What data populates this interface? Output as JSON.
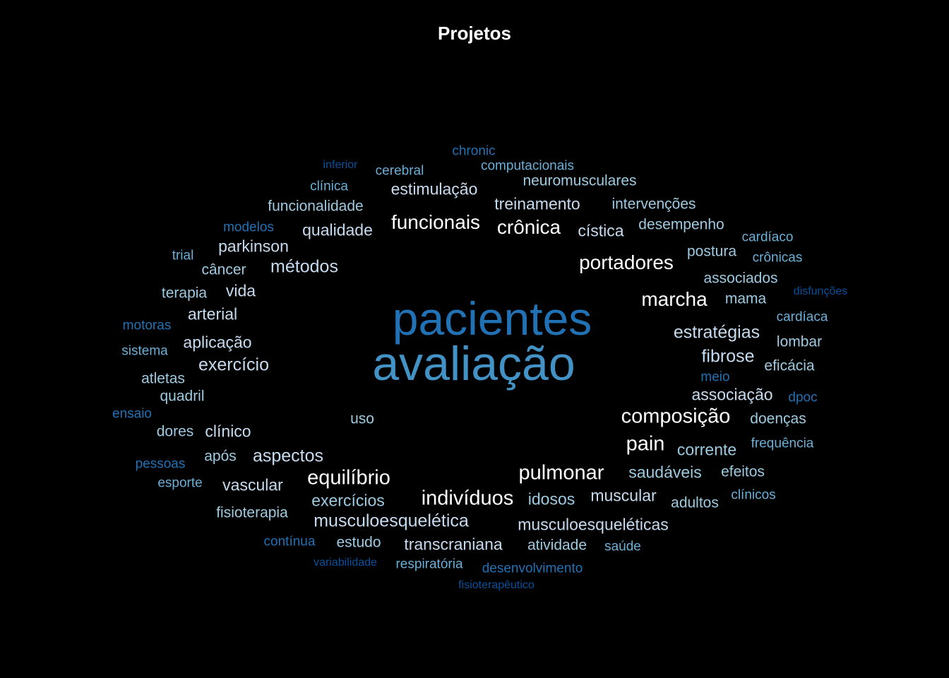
{
  "title": "Projetos",
  "palette": {
    "white": "#ffffff",
    "pale": "#e0ecf8",
    "light": "#c6dbef",
    "sky": "#9ecae1",
    "mid": "#6baed6",
    "blue": "#4292c6",
    "royal": "#2171b5",
    "dark": "#08519c",
    "navy": "#08306b"
  },
  "words": [
    {
      "text": "pacientes",
      "tone": "royal"
    },
    {
      "text": "avaliação",
      "tone": "blue"
    },
    {
      "text": "funcionais",
      "tone": "white"
    },
    {
      "text": "crônica",
      "tone": "white"
    },
    {
      "text": "portadores",
      "tone": "white"
    },
    {
      "text": "marcha",
      "tone": "white"
    },
    {
      "text": "composição",
      "tone": "white"
    },
    {
      "text": "pain",
      "tone": "white"
    },
    {
      "text": "pulmonar",
      "tone": "white"
    },
    {
      "text": "indivíduos",
      "tone": "white"
    },
    {
      "text": "equilíbrio",
      "tone": "white"
    },
    {
      "text": "estimulação",
      "tone": "light"
    },
    {
      "text": "treinamento",
      "tone": "light"
    },
    {
      "text": "qualidade",
      "tone": "light"
    },
    {
      "text": "cística",
      "tone": "light"
    },
    {
      "text": "parkinson",
      "tone": "light"
    },
    {
      "text": "métodos",
      "tone": "light"
    },
    {
      "text": "vida",
      "tone": "light"
    },
    {
      "text": "arterial",
      "tone": "light"
    },
    {
      "text": "aplicação",
      "tone": "light"
    },
    {
      "text": "exercício",
      "tone": "light"
    },
    {
      "text": "estratégias",
      "tone": "light"
    },
    {
      "text": "fibrose",
      "tone": "light"
    },
    {
      "text": "associação",
      "tone": "light"
    },
    {
      "text": "clínico",
      "tone": "light"
    },
    {
      "text": "aspectos",
      "tone": "light"
    },
    {
      "text": "musculoesquelética",
      "tone": "light"
    },
    {
      "text": "musculoesqueléticas",
      "tone": "light"
    },
    {
      "text": "transcraniana",
      "tone": "light"
    },
    {
      "text": "muscular",
      "tone": "light"
    },
    {
      "text": "vascular",
      "tone": "light"
    },
    {
      "text": "saudáveis",
      "tone": "sky"
    },
    {
      "text": "corrente",
      "tone": "sky"
    },
    {
      "text": "idosos",
      "tone": "sky"
    },
    {
      "text": "exercícios",
      "tone": "sky"
    },
    {
      "text": "estudo",
      "tone": "sky"
    },
    {
      "text": "atividade",
      "tone": "sky"
    },
    {
      "text": "adultos",
      "tone": "sky"
    },
    {
      "text": "postura",
      "tone": "sky"
    },
    {
      "text": "associados",
      "tone": "sky"
    },
    {
      "text": "mama",
      "tone": "sky"
    },
    {
      "text": "lombar",
      "tone": "sky"
    },
    {
      "text": "eficácia",
      "tone": "sky"
    },
    {
      "text": "doenças",
      "tone": "sky"
    },
    {
      "text": "efeitos",
      "tone": "sky"
    },
    {
      "text": "desempenho",
      "tone": "sky"
    },
    {
      "text": "intervenções",
      "tone": "sky"
    },
    {
      "text": "neuromusculares",
      "tone": "sky"
    },
    {
      "text": "funcionalidade",
      "tone": "sky"
    },
    {
      "text": "câncer",
      "tone": "sky"
    },
    {
      "text": "terapia",
      "tone": "sky"
    },
    {
      "text": "atletas",
      "tone": "sky"
    },
    {
      "text": "quadril",
      "tone": "sky"
    },
    {
      "text": "dores",
      "tone": "sky"
    },
    {
      "text": "após",
      "tone": "sky"
    },
    {
      "text": "fisioterapia",
      "tone": "sky"
    },
    {
      "text": "uso",
      "tone": "sky"
    },
    {
      "text": "computacionais",
      "tone": "mid"
    },
    {
      "text": "clínica",
      "tone": "mid"
    },
    {
      "text": "cerebral",
      "tone": "mid"
    },
    {
      "text": "cardíaca",
      "tone": "mid"
    },
    {
      "text": "cardíaco",
      "tone": "mid"
    },
    {
      "text": "crônicas",
      "tone": "mid"
    },
    {
      "text": "trial",
      "tone": "mid"
    },
    {
      "text": "sistema",
      "tone": "mid"
    },
    {
      "text": "esporte",
      "tone": "mid"
    },
    {
      "text": "respiratória",
      "tone": "mid"
    },
    {
      "text": "saúde",
      "tone": "mid"
    },
    {
      "text": "frequência",
      "tone": "mid"
    },
    {
      "text": "clínicos",
      "tone": "mid"
    },
    {
      "text": "chronic",
      "tone": "royal"
    },
    {
      "text": "modelos",
      "tone": "royal"
    },
    {
      "text": "motoras",
      "tone": "royal"
    },
    {
      "text": "ensaio",
      "tone": "royal"
    },
    {
      "text": "pessoas",
      "tone": "royal"
    },
    {
      "text": "contínua",
      "tone": "royal"
    },
    {
      "text": "desenvolvimento",
      "tone": "royal"
    },
    {
      "text": "meio",
      "tone": "royal"
    },
    {
      "text": "dpoc",
      "tone": "royal"
    },
    {
      "text": "inferior",
      "tone": "dark"
    },
    {
      "text": "disfunções",
      "tone": "dark"
    },
    {
      "text": "variabilidade",
      "tone": "dark"
    },
    {
      "text": "fisioterapêutico",
      "tone": "dark"
    }
  ]
}
